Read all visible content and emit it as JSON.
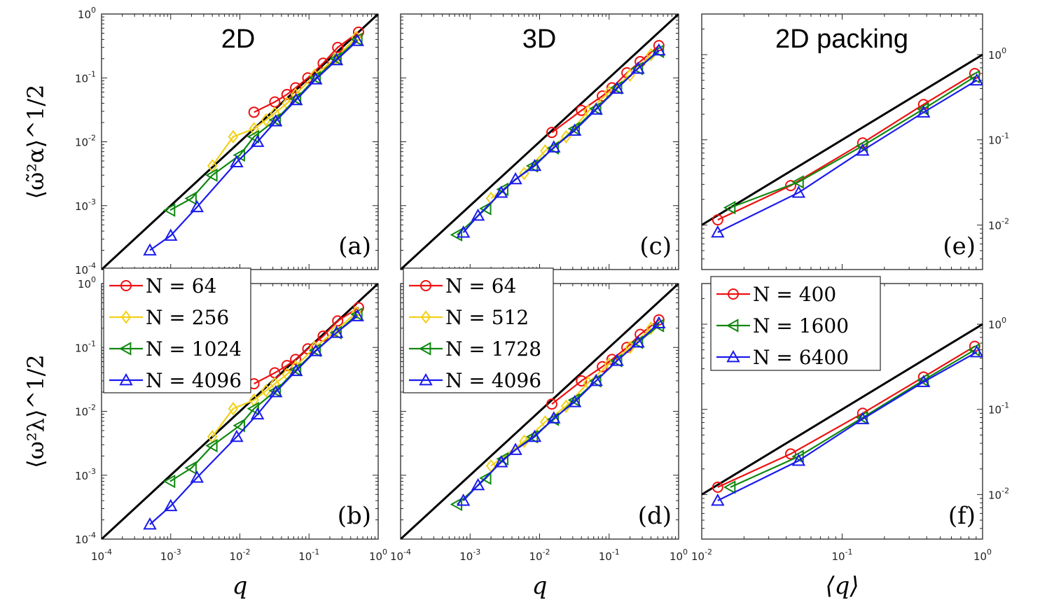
{
  "chart_data": [
    {
      "id": "a",
      "type": "line",
      "title": "2D",
      "panel_label": "(a)",
      "log_x": true,
      "log_y": true,
      "xlim": [
        0.0001,
        1
      ],
      "ylim": [
        0.0001,
        1
      ],
      "xlabel": "",
      "ylabel": "⟨ω̃²α⟩^1/2",
      "reference_line": {
        "x": [
          0.0001,
          1
        ],
        "y": [
          0.0001,
          1
        ]
      },
      "series": [
        {
          "name": "N = 64",
          "color": "#ee1111",
          "marker": "circle",
          "x": [
            0.016,
            0.032,
            0.048,
            0.064,
            0.096,
            0.16,
            0.26,
            0.52
          ],
          "y": [
            0.029,
            0.042,
            0.055,
            0.07,
            0.1,
            0.17,
            0.3,
            0.52
          ]
        },
        {
          "name": "N = 256",
          "color": "#f2d11a",
          "marker": "diamond",
          "x": [
            0.004,
            0.008,
            0.016,
            0.024,
            0.032,
            0.048,
            0.064,
            0.12,
            0.24,
            0.48
          ],
          "y": [
            0.0042,
            0.012,
            0.016,
            0.022,
            0.028,
            0.04,
            0.055,
            0.11,
            0.2,
            0.43
          ]
        },
        {
          "name": "N = 1024",
          "color": "#118811",
          "marker": "triangle-left",
          "x": [
            0.00098,
            0.002,
            0.004,
            0.01,
            0.016,
            0.033,
            0.065,
            0.125,
            0.25,
            0.5
          ],
          "y": [
            0.00085,
            0.0013,
            0.003,
            0.0062,
            0.012,
            0.022,
            0.047,
            0.1,
            0.2,
            0.4
          ]
        },
        {
          "name": "N = 4096",
          "color": "#1a1aee",
          "marker": "triangle-up",
          "x": [
            0.0005,
            0.001,
            0.0024,
            0.009,
            0.018,
            0.033,
            0.065,
            0.125,
            0.25,
            0.5
          ],
          "y": [
            0.0002,
            0.00034,
            0.00095,
            0.0048,
            0.01,
            0.021,
            0.045,
            0.095,
            0.19,
            0.38
          ]
        }
      ]
    },
    {
      "id": "c",
      "type": "line",
      "title": "3D",
      "panel_label": "(c)",
      "log_x": true,
      "log_y": true,
      "xlim": [
        0.0001,
        1
      ],
      "ylim": [
        0.0001,
        1
      ],
      "reference_line": {
        "x": [
          0.0001,
          1
        ],
        "y": [
          0.0001,
          1
        ]
      },
      "series": [
        {
          "name": "N = 64",
          "color": "#ee1111",
          "marker": "circle",
          "x": [
            0.015,
            0.04,
            0.08,
            0.11,
            0.18,
            0.28,
            0.52
          ],
          "y": [
            0.014,
            0.031,
            0.052,
            0.07,
            0.12,
            0.18,
            0.32
          ]
        },
        {
          "name": "N = 512",
          "color": "#f2d11a",
          "marker": "diamond",
          "x": [
            0.002,
            0.006,
            0.012,
            0.024,
            0.05,
            0.1,
            0.2,
            0.4
          ],
          "y": [
            0.0013,
            0.0032,
            0.0072,
            0.012,
            0.03,
            0.06,
            0.11,
            0.23
          ]
        },
        {
          "name": "N = 1728",
          "color": "#118811",
          "marker": "triangle-left",
          "x": [
            0.00065,
            0.0017,
            0.003,
            0.008,
            0.016,
            0.032,
            0.065,
            0.13,
            0.26,
            0.52
          ],
          "y": [
            0.00035,
            0.0009,
            0.0018,
            0.0042,
            0.008,
            0.016,
            0.033,
            0.07,
            0.14,
            0.26
          ]
        },
        {
          "name": "N = 4096",
          "color": "#1a1aee",
          "marker": "triangle-up",
          "x": [
            0.0008,
            0.0013,
            0.0028,
            0.0045,
            0.0085,
            0.016,
            0.032,
            0.065,
            0.13,
            0.26,
            0.52
          ],
          "y": [
            0.00038,
            0.0007,
            0.0016,
            0.0026,
            0.0042,
            0.0082,
            0.015,
            0.032,
            0.068,
            0.14,
            0.27
          ]
        }
      ]
    },
    {
      "id": "e",
      "type": "line",
      "title": "2D packing",
      "panel_label": "(e)",
      "log_x": true,
      "log_y": true,
      "xlim": [
        0.01,
        1
      ],
      "ylim": [
        0.003,
        3
      ],
      "reference_line": {
        "x": [
          0.01,
          1
        ],
        "y": [
          0.01,
          1
        ]
      },
      "series": [
        {
          "name": "N = 400",
          "color": "#ee1111",
          "marker": "circle",
          "x": [
            0.013,
            0.043,
            0.14,
            0.38,
            0.88
          ],
          "y": [
            0.0115,
            0.029,
            0.092,
            0.26,
            0.6
          ]
        },
        {
          "name": "N = 1600",
          "color": "#118811",
          "marker": "triangle-left",
          "x": [
            0.016,
            0.049,
            0.14,
            0.38,
            0.88
          ],
          "y": [
            0.016,
            0.032,
            0.085,
            0.23,
            0.55
          ]
        },
        {
          "name": "N = 6400",
          "color": "#1a1aee",
          "marker": "triangle-up",
          "x": [
            0.013,
            0.049,
            0.14,
            0.38,
            0.91
          ],
          "y": [
            0.0082,
            0.024,
            0.075,
            0.21,
            0.5
          ]
        }
      ]
    },
    {
      "id": "b",
      "type": "line",
      "panel_label": "(b)",
      "log_x": true,
      "log_y": true,
      "xlim": [
        0.0001,
        1
      ],
      "ylim": [
        0.0001,
        1
      ],
      "xlabel": "q",
      "ylabel": "⟨ω²λ⟩^1/2",
      "reference_line": {
        "x": [
          0.0001,
          1
        ],
        "y": [
          0.0001,
          1
        ]
      },
      "series": [
        {
          "name": "N = 64",
          "color": "#ee1111",
          "marker": "circle",
          "x": [
            0.016,
            0.032,
            0.048,
            0.064,
            0.096,
            0.16,
            0.26,
            0.52
          ],
          "y": [
            0.027,
            0.04,
            0.052,
            0.065,
            0.095,
            0.15,
            0.26,
            0.42
          ]
        },
        {
          "name": "N = 256",
          "color": "#f2d11a",
          "marker": "diamond",
          "x": [
            0.004,
            0.008,
            0.016,
            0.024,
            0.032,
            0.048,
            0.064,
            0.12,
            0.24,
            0.48
          ],
          "y": [
            0.004,
            0.011,
            0.015,
            0.021,
            0.027,
            0.038,
            0.05,
            0.1,
            0.18,
            0.35
          ]
        },
        {
          "name": "N = 1024",
          "color": "#118811",
          "marker": "triangle-left",
          "x": [
            0.00098,
            0.002,
            0.004,
            0.01,
            0.016,
            0.033,
            0.065,
            0.125,
            0.25,
            0.5
          ],
          "y": [
            0.0008,
            0.0013,
            0.0029,
            0.006,
            0.011,
            0.021,
            0.045,
            0.09,
            0.17,
            0.33
          ]
        },
        {
          "name": "N = 4096",
          "color": "#1a1aee",
          "marker": "triangle-up",
          "x": [
            0.0005,
            0.001,
            0.0024,
            0.009,
            0.018,
            0.033,
            0.065,
            0.125,
            0.25,
            0.5
          ],
          "y": [
            0.00017,
            0.00033,
            0.00092,
            0.004,
            0.009,
            0.02,
            0.043,
            0.088,
            0.17,
            0.31
          ]
        }
      ]
    },
    {
      "id": "d",
      "type": "line",
      "panel_label": "(d)",
      "log_x": true,
      "log_y": true,
      "xlim": [
        0.0001,
        1
      ],
      "ylim": [
        0.0001,
        1
      ],
      "xlabel": "q",
      "reference_line": {
        "x": [
          0.0001,
          1
        ],
        "y": [
          0.0001,
          1
        ]
      },
      "series": [
        {
          "name": "N = 64",
          "color": "#ee1111",
          "marker": "circle",
          "x": [
            0.015,
            0.04,
            0.08,
            0.11,
            0.18,
            0.28,
            0.52
          ],
          "y": [
            0.013,
            0.03,
            0.05,
            0.065,
            0.1,
            0.16,
            0.27
          ]
        },
        {
          "name": "N = 512",
          "color": "#f2d11a",
          "marker": "diamond",
          "x": [
            0.002,
            0.006,
            0.012,
            0.024,
            0.05,
            0.1,
            0.2,
            0.4
          ],
          "y": [
            0.0014,
            0.0034,
            0.0068,
            0.012,
            0.028,
            0.055,
            0.1,
            0.2
          ]
        },
        {
          "name": "N = 1728",
          "color": "#118811",
          "marker": "triangle-left",
          "x": [
            0.00065,
            0.0017,
            0.003,
            0.008,
            0.016,
            0.032,
            0.065,
            0.13,
            0.26,
            0.52
          ],
          "y": [
            0.00035,
            0.0009,
            0.0018,
            0.004,
            0.0075,
            0.015,
            0.03,
            0.062,
            0.12,
            0.22
          ]
        },
        {
          "name": "N = 4096",
          "color": "#1a1aee",
          "marker": "triangle-up",
          "x": [
            0.0008,
            0.0013,
            0.0028,
            0.0045,
            0.0085,
            0.016,
            0.032,
            0.065,
            0.13,
            0.26,
            0.52
          ],
          "y": [
            0.0004,
            0.0007,
            0.0016,
            0.0025,
            0.004,
            0.0078,
            0.014,
            0.03,
            0.062,
            0.12,
            0.24
          ]
        }
      ]
    },
    {
      "id": "f",
      "type": "line",
      "panel_label": "(f)",
      "log_x": true,
      "log_y": true,
      "xlim": [
        0.01,
        1
      ],
      "ylim": [
        0.003,
        3
      ],
      "xlabel": "⟨q⟩",
      "reference_line": {
        "x": [
          0.01,
          1
        ],
        "y": [
          0.01,
          1
        ]
      },
      "series": [
        {
          "name": "N = 400",
          "color": "#ee1111",
          "marker": "circle",
          "x": [
            0.013,
            0.043,
            0.14,
            0.38,
            0.88
          ],
          "y": [
            0.0122,
            0.03,
            0.09,
            0.24,
            0.55
          ]
        },
        {
          "name": "N = 1600",
          "color": "#118811",
          "marker": "triangle-left",
          "x": [
            0.016,
            0.049,
            0.14,
            0.38,
            0.88
          ],
          "y": [
            0.0122,
            0.028,
            0.08,
            0.22,
            0.5
          ]
        },
        {
          "name": "N = 6400",
          "color": "#1a1aee",
          "marker": "triangle-up",
          "x": [
            0.013,
            0.049,
            0.14,
            0.38,
            0.91
          ],
          "y": [
            0.0085,
            0.025,
            0.077,
            0.21,
            0.47
          ]
        }
      ]
    }
  ],
  "tick_labels": {
    "q_axis": [
      {
        "base": "10",
        "exp": "-4"
      },
      {
        "base": "10",
        "exp": "-3"
      },
      {
        "base": "10",
        "exp": "-2"
      },
      {
        "base": "10",
        "exp": "-1"
      },
      {
        "base": "10",
        "exp": "0"
      }
    ],
    "packing_x": [
      {
        "base": "10",
        "exp": "-2"
      },
      {
        "base": "10",
        "exp": "-1"
      },
      {
        "base": "10",
        "exp": "0"
      }
    ],
    "packing_y": [
      {
        "base": "10",
        "exp": "-2"
      },
      {
        "base": "10",
        "exp": "-1"
      },
      {
        "base": "10",
        "exp": "0"
      }
    ]
  },
  "legends": {
    "panel_a": [
      "N = 64",
      "N = 256",
      "N = 1024",
      "N = 4096"
    ],
    "panel_c": [
      "N = 64",
      "N = 512",
      "N = 1728",
      "N = 4096"
    ],
    "panel_f": [
      "N = 400",
      "N = 1600",
      "N = 6400"
    ]
  }
}
